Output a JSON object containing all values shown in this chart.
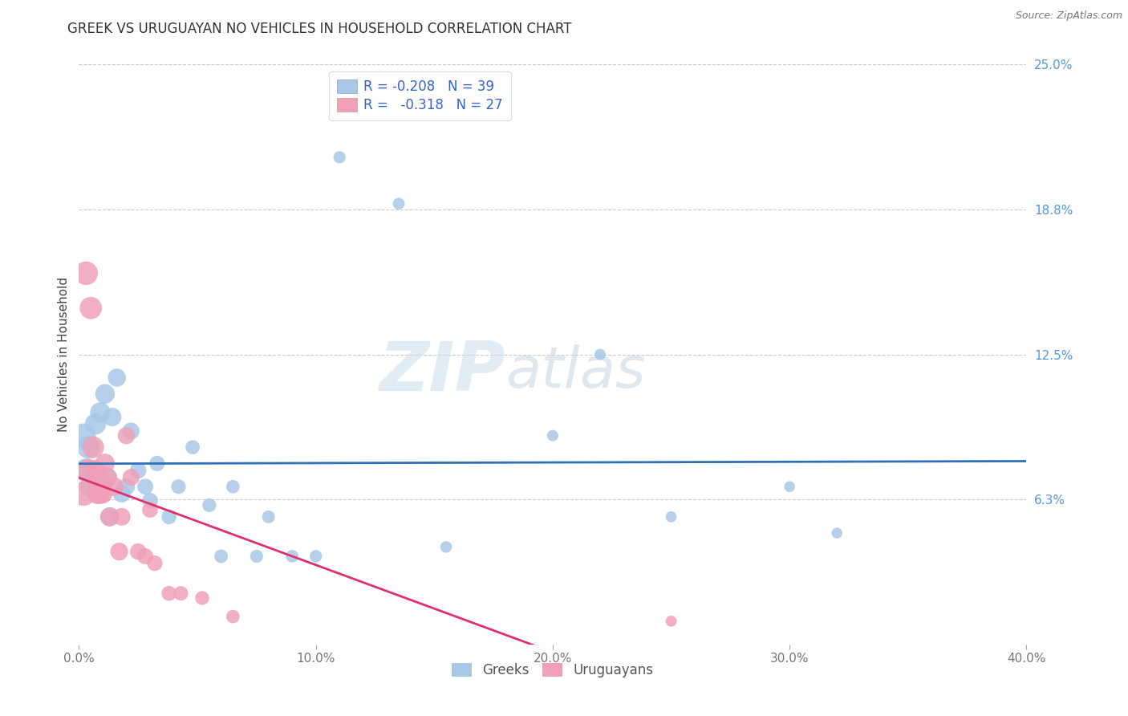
{
  "title": "GREEK VS URUGUAYAN NO VEHICLES IN HOUSEHOLD CORRELATION CHART",
  "source": "Source: ZipAtlas.com",
  "ylabel": "No Vehicles in Household",
  "xlim": [
    0.0,
    0.4
  ],
  "ylim": [
    -0.01,
    0.265
  ],
  "plot_ylim": [
    0.0,
    0.25
  ],
  "xticks": [
    0.0,
    0.1,
    0.2,
    0.3,
    0.4
  ],
  "xtick_labels": [
    "0.0%",
    "10.0%",
    "20.0%",
    "30.0%",
    "40.0%"
  ],
  "yticks_right": [
    0.0,
    0.0625,
    0.125,
    0.1875,
    0.25
  ],
  "ytick_labels_right": [
    "",
    "6.3%",
    "12.5%",
    "18.8%",
    "25.0%"
  ],
  "greek_color": "#a8c8e8",
  "uruguayan_color": "#f0a0b8",
  "greek_line_color": "#3070b8",
  "uruguayan_line_color": "#e03070",
  "legend_greek_R": "R = -0.208",
  "legend_greek_N": "N = 39",
  "legend_uruguayan_R": "R =  -0.318",
  "legend_uruguayan_N": "N = 27",
  "watermark_zip": "ZIP",
  "watermark_atlas": "atlas",
  "background_color": "#ffffff",
  "greek_x": [
    0.002,
    0.003,
    0.004,
    0.005,
    0.006,
    0.007,
    0.008,
    0.009,
    0.01,
    0.011,
    0.012,
    0.013,
    0.014,
    0.016,
    0.018,
    0.02,
    0.022,
    0.025,
    0.028,
    0.03,
    0.033,
    0.038,
    0.042,
    0.048,
    0.055,
    0.06,
    0.065,
    0.075,
    0.08,
    0.09,
    0.1,
    0.11,
    0.135,
    0.155,
    0.2,
    0.22,
    0.25,
    0.3,
    0.32
  ],
  "greek_y": [
    0.09,
    0.075,
    0.085,
    0.068,
    0.072,
    0.095,
    0.065,
    0.1,
    0.068,
    0.108,
    0.072,
    0.055,
    0.098,
    0.115,
    0.065,
    0.068,
    0.092,
    0.075,
    0.068,
    0.062,
    0.078,
    0.055,
    0.068,
    0.085,
    0.06,
    0.038,
    0.068,
    0.038,
    0.055,
    0.038,
    0.038,
    0.21,
    0.19,
    0.042,
    0.09,
    0.125,
    0.055,
    0.068,
    0.048
  ],
  "uruguayan_x": [
    0.002,
    0.003,
    0.004,
    0.005,
    0.006,
    0.007,
    0.008,
    0.008,
    0.009,
    0.01,
    0.011,
    0.012,
    0.013,
    0.015,
    0.017,
    0.018,
    0.02,
    0.022,
    0.025,
    0.028,
    0.03,
    0.032,
    0.038,
    0.043,
    0.052,
    0.065,
    0.25
  ],
  "uruguayan_y": [
    0.065,
    0.16,
    0.075,
    0.145,
    0.085,
    0.075,
    0.065,
    0.07,
    0.065,
    0.065,
    0.078,
    0.072,
    0.055,
    0.068,
    0.04,
    0.055,
    0.09,
    0.072,
    0.04,
    0.038,
    0.058,
    0.035,
    0.022,
    0.022,
    0.02,
    0.012,
    0.01
  ]
}
